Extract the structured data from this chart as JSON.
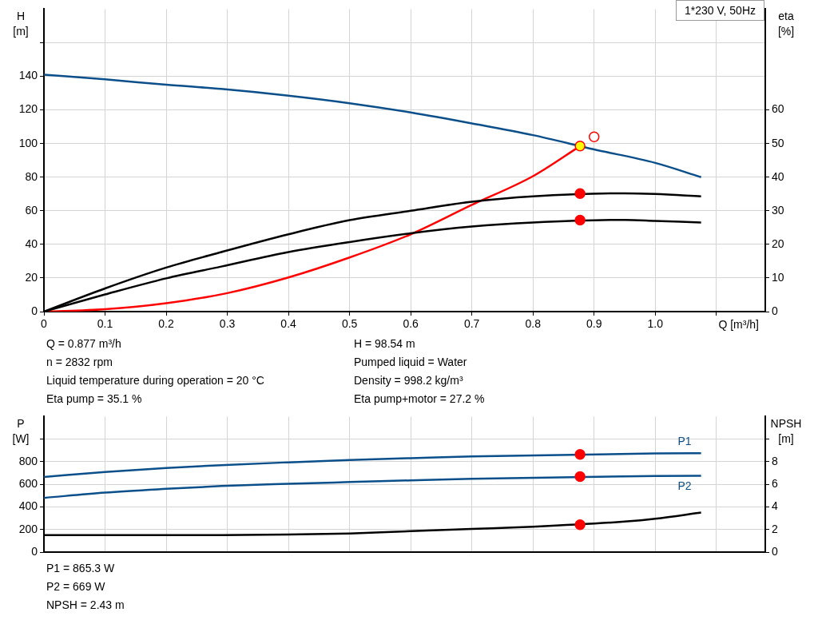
{
  "chart_data": [
    {
      "type": "line",
      "title": "1*230 V, 50Hz",
      "xlabel": "Q [m³/h]",
      "ylabel": "H [m]",
      "y2label": "eta [%]",
      "xlim": [
        0,
        1.18
      ],
      "xticks": [
        0,
        0.1,
        0.2,
        0.3,
        0.4,
        0.5,
        0.6,
        0.7,
        0.8,
        0.9,
        {
          "value": 1,
          "label": "1.0"
        },
        {
          "value": 1.1,
          "label": null
        }
      ],
      "ylim": [
        0,
        180
      ],
      "yticks": [
        0,
        20,
        40,
        60,
        80,
        100,
        120,
        140,
        {
          "value": 160,
          "label": null
        }
      ],
      "y2lim": [
        0,
        90
      ],
      "y2ticks": [
        0,
        10,
        20,
        30,
        40,
        50,
        60
      ],
      "grid": true,
      "legend": false,
      "marker": "none",
      "series": [
        {
          "color": "#0b4f8a",
          "x": [
            0,
            0.1,
            0.2,
            0.29,
            0.4,
            0.5,
            0.6,
            0.7,
            0.8,
            0.9,
            1.0,
            1.075
          ],
          "values": [
            141,
            138.2,
            135,
            132.5,
            128.5,
            124,
            118.5,
            112,
            105,
            96.5,
            88.5,
            80
          ]
        },
        {
          "color": "#000000",
          "axis": "y2",
          "x": [
            0,
            0.1,
            0.2,
            0.29,
            0.4,
            0.5,
            0.6,
            0.7,
            0.8,
            0.95,
            1.0,
            1.075
          ],
          "values": [
            0,
            6.9,
            13.1,
            17.7,
            23,
            27.2,
            30,
            32.7,
            34.3,
            35.2,
            35,
            34.3
          ]
        },
        {
          "color": "#000000",
          "axis": "y2",
          "x": [
            0,
            0.1,
            0.2,
            0.29,
            0.4,
            0.5,
            0.6,
            0.7,
            0.8,
            0.95,
            1.0,
            1.075
          ],
          "values": [
            0,
            5.1,
            9.9,
            13.4,
            17.7,
            20.7,
            23.3,
            25.3,
            26.5,
            27.3,
            27,
            26.5
          ]
        },
        {
          "color": "#ff0000",
          "x": [
            0,
            0.1,
            0.2,
            0.3,
            0.4,
            0.5,
            0.6,
            0.7,
            0.8,
            0.877
          ],
          "values": [
            0,
            1.4,
            5,
            11,
            20.3,
            32.2,
            46,
            63.5,
            80.6,
            98.5
          ]
        },
        {
          "type": "scatter",
          "marker": "circle",
          "color": "#ffffff",
          "x": [
            0.9
          ],
          "values": [
            104
          ]
        },
        {
          "type": "scatter",
          "marker": "circle",
          "color": "#ffff00",
          "x": [
            0.877
          ],
          "values": [
            98.54
          ]
        },
        {
          "type": "scatter",
          "marker": "circle",
          "color": "#ff0000",
          "axis": "y2",
          "x": [
            0.877,
            0.877
          ],
          "values": [
            35.1,
            27.2
          ]
        }
      ],
      "annotations": [
        "Q = 0.877 m³/h",
        "n = 2832 rpm",
        "Liquid temperature during operation = 20 °C",
        "Eta pump = 35.1 %",
        "H = 98.54 m",
        "Pumped liquid = Water",
        "Density = 998.2 kg/m³",
        "Eta pump+motor = 27.2 %"
      ]
    },
    {
      "type": "line",
      "ylabel": "P [W]",
      "y2label": "NPSH [m]",
      "tick_labels": "y",
      "xlim": [
        0,
        1.18
      ],
      "xticks": [
        0,
        0.1,
        0.2,
        0.3,
        0.4,
        0.5,
        0.6,
        0.7,
        0.8,
        0.9,
        1.0,
        1.1
      ],
      "ylim": [
        0,
        1200
      ],
      "yticks": [
        0,
        200,
        400,
        600,
        800,
        {
          "value": 1000,
          "label": null
        }
      ],
      "y2lim": [
        0,
        12
      ],
      "y2ticks": [
        0,
        2,
        4,
        6,
        8,
        {
          "value": 10,
          "label": null
        }
      ],
      "grid": true,
      "legend": false,
      "marker": "none",
      "series": [
        {
          "name": "P1",
          "color": "#0b4f8a",
          "x": [
            0,
            0.1,
            0.2,
            0.29,
            0.4,
            0.5,
            0.6,
            0.7,
            1.0,
            1.075
          ],
          "values": [
            665,
            710,
            745,
            770,
            795,
            815,
            832,
            848,
            873,
            875
          ]
        },
        {
          "name": "P2",
          "color": "#0b4f8a",
          "x": [
            0,
            0.1,
            0.2,
            0.29,
            0.4,
            0.5,
            0.6,
            0.7,
            1.0,
            1.075
          ],
          "values": [
            480,
            527,
            560,
            585,
            605,
            620,
            635,
            650,
            674,
            675
          ]
        },
        {
          "color": "#000000",
          "axis": "y2",
          "x": [
            0,
            0.29,
            0.4,
            0.5,
            0.6,
            0.7,
            0.8,
            0.95,
            1.0,
            1.075
          ],
          "values": [
            1.5,
            1.5,
            1.55,
            1.65,
            1.85,
            2.05,
            2.25,
            2.7,
            2.95,
            3.5
          ]
        },
        {
          "type": "scatter",
          "marker": "circle",
          "color": "#ff0000",
          "x": [
            0.877,
            0.877
          ],
          "values": [
            865.3,
            669
          ]
        },
        {
          "type": "scatter",
          "marker": "circle",
          "color": "#ff0000",
          "axis": "y2",
          "x": [
            0.877
          ],
          "values": [
            2.43
          ]
        }
      ],
      "annotations": [
        "P1 = 865.3 W",
        "P2 = 669 W",
        "NPSH = 2.43 m"
      ]
    }
  ]
}
